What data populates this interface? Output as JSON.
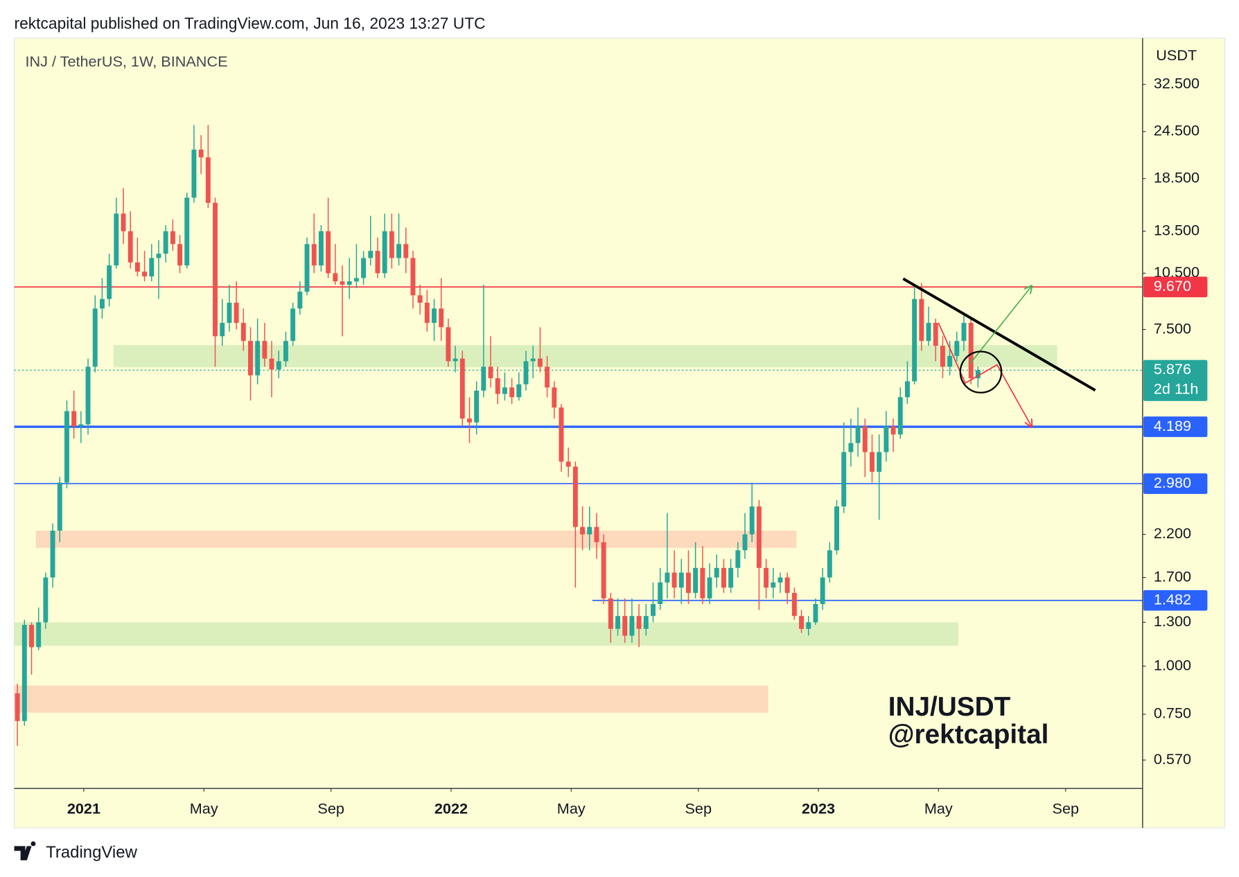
{
  "chart_data": {
    "type": "candlestick",
    "header": "rektcapital published on TradingView.com, Jun 16, 2023 13:27 UTC",
    "title": "INJ / TetherUS, 1W, BINANCE",
    "y_axis_label": "USDT",
    "brand": "TradingView",
    "annotations": [
      "INJ/USDT",
      "@rektcapital"
    ],
    "log_scale": true,
    "grid": false,
    "up_color": "#26a69a",
    "down_color": "#ef5350",
    "ylim": [
      0.481,
      42.9
    ],
    "yticks": [
      {
        "value": 0.57,
        "label": "0.570"
      },
      {
        "value": 0.75,
        "label": "0.750"
      },
      {
        "value": 1.0,
        "label": "1.000"
      },
      {
        "value": 1.3,
        "label": "1.300"
      },
      {
        "value": 1.7,
        "label": "1.700"
      },
      {
        "value": 2.2,
        "label": "2.200"
      },
      {
        "value": 7.5,
        "label": "7.500"
      },
      {
        "value": 10.5,
        "label": "10.500"
      },
      {
        "value": 13.5,
        "label": "13.500"
      },
      {
        "value": 18.5,
        "label": "18.500"
      },
      {
        "value": 24.5,
        "label": "24.500"
      },
      {
        "value": 32.5,
        "label": "32.500"
      }
    ],
    "xlim": [
      -0.45,
      159.3
    ],
    "xticks": [
      {
        "value": 9.4,
        "label": "2021"
      },
      {
        "value": 26.4,
        "label": "May"
      },
      {
        "value": 44.4,
        "label": "Sep"
      },
      {
        "value": 61.4,
        "label": "2022"
      },
      {
        "value": 78.4,
        "label": "May"
      },
      {
        "value": 96.4,
        "label": "Sep"
      },
      {
        "value": 113.4,
        "label": "2023"
      },
      {
        "value": 130.4,
        "label": "May"
      },
      {
        "value": 148.4,
        "label": "Sep"
      }
    ],
    "candles": [
      [
        0.85,
        0.9,
        0.62,
        0.72
      ],
      [
        0.72,
        1.32,
        0.7,
        1.28
      ],
      [
        1.28,
        1.3,
        0.95,
        1.12
      ],
      [
        1.12,
        1.42,
        1.1,
        1.3
      ],
      [
        1.3,
        1.75,
        1.25,
        1.7
      ],
      [
        1.7,
        2.35,
        1.6,
        2.25
      ],
      [
        2.25,
        3.1,
        2.1,
        3.0
      ],
      [
        3.0,
        4.9,
        2.9,
        4.6
      ],
      [
        4.6,
        5.2,
        3.9,
        4.2
      ],
      [
        4.2,
        4.6,
        3.8,
        4.25
      ],
      [
        4.25,
        6.3,
        4.0,
        6.0
      ],
      [
        6.0,
        9.2,
        5.8,
        8.5
      ],
      [
        8.5,
        10.2,
        8.0,
        9.0
      ],
      [
        9.0,
        11.8,
        8.6,
        11.0
      ],
      [
        11.0,
        16.5,
        10.8,
        15.0
      ],
      [
        15.0,
        17.5,
        12.5,
        13.5
      ],
      [
        13.5,
        15.2,
        10.8,
        11.2
      ],
      [
        11.2,
        13.0,
        10.3,
        10.6
      ],
      [
        10.6,
        12.0,
        10.0,
        10.3
      ],
      [
        10.3,
        12.5,
        10.0,
        11.5
      ],
      [
        11.5,
        12.8,
        9.0,
        11.8
      ],
      [
        11.8,
        14.0,
        11.2,
        13.5
      ],
      [
        13.5,
        14.5,
        12.0,
        12.5
      ],
      [
        12.5,
        13.2,
        10.5,
        11.0
      ],
      [
        11.0,
        17.0,
        10.8,
        16.5
      ],
      [
        16.5,
        25.5,
        16.0,
        22.0
      ],
      [
        22.0,
        24.0,
        19.0,
        21.0
      ],
      [
        21.0,
        25.5,
        15.5,
        16.0
      ],
      [
        16.0,
        16.5,
        6.0,
        7.2
      ],
      [
        7.2,
        9.0,
        6.8,
        7.8
      ],
      [
        7.8,
        9.8,
        7.4,
        8.8
      ],
      [
        8.8,
        10.0,
        7.5,
        7.8
      ],
      [
        7.8,
        8.5,
        6.6,
        7.0
      ],
      [
        7.0,
        7.6,
        4.9,
        5.7
      ],
      [
        5.7,
        8.0,
        5.4,
        7.0
      ],
      [
        7.0,
        7.8,
        6.0,
        6.3
      ],
      [
        6.3,
        7.0,
        5.0,
        5.9
      ],
      [
        5.9,
        6.6,
        5.6,
        6.2
      ],
      [
        6.2,
        7.4,
        6.0,
        7.0
      ],
      [
        7.0,
        8.8,
        6.8,
        8.5
      ],
      [
        8.5,
        10.0,
        8.2,
        9.4
      ],
      [
        9.4,
        13.0,
        9.2,
        12.5
      ],
      [
        12.5,
        15.0,
        10.5,
        11.0
      ],
      [
        11.0,
        14.0,
        10.6,
        13.5
      ],
      [
        13.5,
        16.5,
        10.2,
        10.5
      ],
      [
        10.5,
        12.5,
        9.8,
        10.0
      ],
      [
        10.0,
        11.0,
        7.2,
        9.8
      ],
      [
        9.8,
        11.5,
        9.0,
        10.0
      ],
      [
        10.0,
        12.5,
        9.6,
        10.2
      ],
      [
        10.2,
        12.0,
        9.8,
        11.5
      ],
      [
        11.5,
        14.8,
        11.0,
        12.0
      ],
      [
        12.0,
        13.0,
        10.2,
        10.5
      ],
      [
        10.5,
        15.0,
        10.2,
        13.5
      ],
      [
        13.5,
        15.0,
        10.8,
        11.5
      ],
      [
        11.5,
        15.0,
        11.0,
        12.5
      ],
      [
        12.5,
        13.8,
        10.5,
        11.5
      ],
      [
        11.5,
        12.0,
        8.5,
        9.2
      ],
      [
        9.2,
        9.8,
        8.2,
        8.8
      ],
      [
        8.8,
        9.5,
        7.4,
        7.8
      ],
      [
        7.8,
        9.0,
        7.0,
        8.5
      ],
      [
        8.5,
        10.2,
        7.0,
        7.6
      ],
      [
        7.6,
        8.0,
        6.0,
        6.2
      ],
      [
        6.2,
        6.8,
        5.8,
        6.3
      ],
      [
        6.3,
        6.6,
        4.2,
        4.4
      ],
      [
        4.4,
        5.0,
        3.8,
        4.3
      ],
      [
        4.3,
        5.5,
        4.0,
        5.2
      ],
      [
        5.2,
        9.8,
        5.0,
        6.0
      ],
      [
        6.0,
        7.2,
        5.3,
        5.6
      ],
      [
        5.6,
        6.0,
        4.8,
        5.1
      ],
      [
        5.1,
        5.8,
        4.9,
        5.3
      ],
      [
        5.3,
        5.6,
        4.8,
        5.0
      ],
      [
        5.0,
        5.8,
        4.9,
        5.4
      ],
      [
        5.4,
        6.6,
        5.2,
        6.2
      ],
      [
        6.2,
        6.8,
        5.6,
        6.3
      ],
      [
        6.3,
        7.6,
        5.8,
        6.0
      ],
      [
        6.0,
        6.4,
        5.0,
        5.3
      ],
      [
        5.3,
        5.5,
        4.4,
        4.7
      ],
      [
        4.7,
        4.8,
        3.2,
        3.4
      ],
      [
        3.4,
        3.7,
        3.1,
        3.3
      ],
      [
        3.3,
        3.4,
        1.6,
        2.3
      ],
      [
        2.3,
        2.6,
        2.0,
        2.2
      ],
      [
        2.2,
        2.6,
        2.0,
        2.3
      ],
      [
        2.3,
        2.5,
        1.9,
        2.1
      ],
      [
        2.1,
        2.2,
        1.45,
        1.5
      ],
      [
        1.5,
        1.55,
        1.15,
        1.25
      ],
      [
        1.25,
        1.5,
        1.2,
        1.35
      ],
      [
        1.35,
        1.5,
        1.15,
        1.2
      ],
      [
        1.2,
        1.5,
        1.15,
        1.35
      ],
      [
        1.35,
        1.45,
        1.12,
        1.25
      ],
      [
        1.25,
        1.45,
        1.2,
        1.35
      ],
      [
        1.35,
        1.65,
        1.3,
        1.45
      ],
      [
        1.45,
        1.8,
        1.4,
        1.65
      ],
      [
        1.65,
        2.5,
        1.5,
        1.75
      ],
      [
        1.75,
        2.0,
        1.5,
        1.6
      ],
      [
        1.6,
        1.9,
        1.45,
        1.75
      ],
      [
        1.75,
        2.0,
        1.45,
        1.55
      ],
      [
        1.55,
        2.1,
        1.5,
        1.8
      ],
      [
        1.8,
        2.05,
        1.45,
        1.5
      ],
      [
        1.5,
        1.85,
        1.45,
        1.7
      ],
      [
        1.7,
        1.95,
        1.6,
        1.8
      ],
      [
        1.8,
        1.9,
        1.55,
        1.6
      ],
      [
        1.6,
        1.9,
        1.55,
        1.8
      ],
      [
        1.8,
        2.1,
        1.7,
        2.0
      ],
      [
        2.0,
        2.5,
        1.9,
        2.2
      ],
      [
        2.2,
        3.0,
        2.1,
        2.6
      ],
      [
        2.6,
        2.7,
        1.4,
        1.8
      ],
      [
        1.8,
        1.9,
        1.5,
        1.6
      ],
      [
        1.6,
        1.8,
        1.5,
        1.65
      ],
      [
        1.65,
        1.75,
        1.55,
        1.7
      ],
      [
        1.7,
        1.75,
        1.45,
        1.55
      ],
      [
        1.55,
        1.6,
        1.32,
        1.35
      ],
      [
        1.35,
        1.4,
        1.22,
        1.25
      ],
      [
        1.25,
        1.35,
        1.2,
        1.3
      ],
      [
        1.3,
        1.5,
        1.28,
        1.45
      ],
      [
        1.45,
        1.8,
        1.4,
        1.7
      ],
      [
        1.7,
        2.1,
        1.65,
        2.0
      ],
      [
        2.0,
        2.7,
        1.95,
        2.6
      ],
      [
        2.6,
        4.3,
        2.5,
        3.6
      ],
      [
        3.6,
        4.4,
        3.3,
        3.8
      ],
      [
        3.8,
        4.7,
        3.5,
        4.2
      ],
      [
        4.2,
        4.4,
        3.1,
        3.6
      ],
      [
        3.6,
        4.0,
        3.0,
        3.2
      ],
      [
        3.2,
        4.0,
        2.4,
        3.6
      ],
      [
        3.6,
        4.6,
        3.4,
        4.2
      ],
      [
        4.2,
        4.4,
        3.6,
        4.0
      ],
      [
        4.0,
        5.3,
        3.9,
        5.0
      ],
      [
        5.0,
        6.2,
        4.8,
        5.5
      ],
      [
        5.5,
        9.8,
        5.4,
        9.0
      ],
      [
        9.0,
        9.9,
        6.6,
        7.0
      ],
      [
        7.0,
        8.6,
        6.8,
        7.8
      ],
      [
        7.8,
        8.0,
        6.2,
        6.8
      ],
      [
        6.8,
        7.2,
        5.6,
        6.0
      ],
      [
        6.0,
        7.0,
        5.7,
        6.4
      ],
      [
        6.4,
        7.4,
        6.2,
        7.0
      ],
      [
        7.0,
        8.2,
        6.6,
        7.8
      ],
      [
        7.8,
        8.0,
        5.4,
        5.6
      ],
      [
        5.6,
        6.0,
        5.3,
        5.876
      ]
    ],
    "zones": [
      {
        "color": "#d5ecb8",
        "x": [
          13.6,
          147.2
        ],
        "y": [
          5.98,
          6.83
        ]
      },
      {
        "color": "#fcd3b6",
        "x": [
          2.6,
          110.3
        ],
        "y": [
          2.03,
          2.25
        ]
      },
      {
        "color": "#d5ecb8",
        "x": [
          -0.45,
          133.2
        ],
        "y": [
          1.13,
          1.3
        ]
      },
      {
        "color": "#fcd3b6",
        "x": [
          -0.45,
          106.3
        ],
        "y": [
          0.757,
          0.89
        ]
      }
    ],
    "levels": [
      {
        "value": 9.67,
        "label": "9.670",
        "color": "#f23645"
      },
      {
        "value": 4.189,
        "label": "4.189",
        "color": "#2962ff",
        "line_width": 3
      },
      {
        "value": 2.98,
        "label": "2.980",
        "color": "#2962ff"
      },
      {
        "value": 1.482,
        "label": "1.482",
        "color": "#2962ff",
        "x_start": 81.4
      },
      {
        "value": 5.876,
        "label": "5.876",
        "color": "#26a69a",
        "dotted": true,
        "countdown": "2d 11h"
      }
    ],
    "drawings": [
      {
        "kind": "line",
        "color": "#000000",
        "points": [
          [
            125.4,
            10.16
          ],
          [
            152.6,
            5.21
          ]
        ]
      },
      {
        "kind": "arrow",
        "color": "#4caf50",
        "points": [
          [
            134.9,
            6.12
          ],
          [
            143.6,
            9.73
          ]
        ]
      },
      {
        "kind": "arrow",
        "color": "#f23645",
        "points": [
          [
            130.4,
            7.8
          ],
          [
            134.2,
            5.44
          ],
          [
            138.7,
            6.07
          ],
          [
            143.6,
            4.19
          ]
        ]
      },
      {
        "kind": "circle",
        "color": "#000000",
        "center": [
          136.4,
          5.81
        ]
      }
    ]
  }
}
